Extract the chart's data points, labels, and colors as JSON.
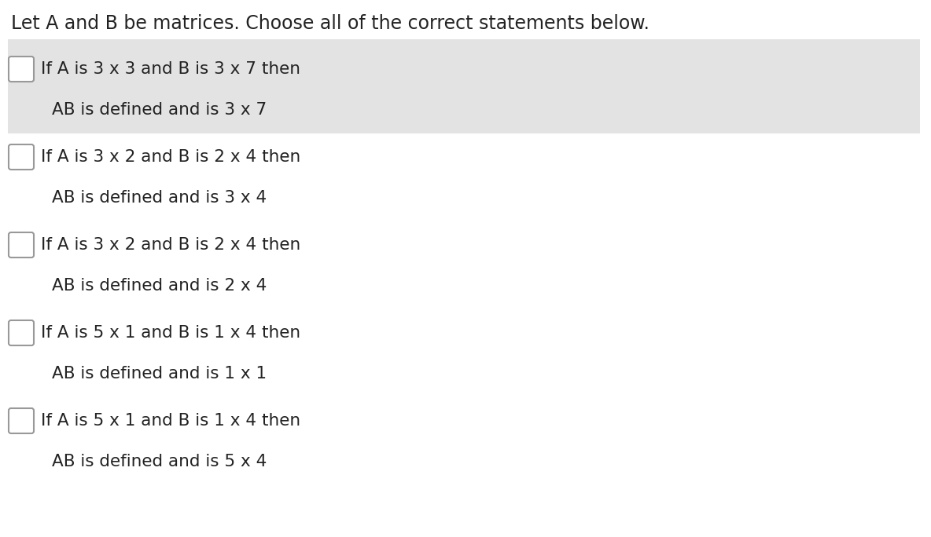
{
  "title": "Let A and B be matrices. Choose all of the correct statements below.",
  "title_fontsize": 17,
  "title_color": "#222222",
  "background_color": "#ffffff",
  "items": [
    {
      "condition": "If A is 3 x 3 and B is 3 x 7 then",
      "result": "AB is defined and is 3 x 7",
      "highlighted": true
    },
    {
      "condition": "If A is 3 x 2 and B is 2 x 4 then",
      "result": "AB is defined and is 3 x 4",
      "highlighted": false
    },
    {
      "condition": "If A is 3 x 2 and B is 2 x 4 then",
      "result": "AB is defined and is 2 x 4",
      "highlighted": false
    },
    {
      "condition": "If A is 5 x 1 and B is 1 x 4 then",
      "result": "AB is defined and is 1 x 1",
      "highlighted": false
    },
    {
      "condition": "If A is 5 x 1 and B is 1 x 4 then",
      "result": "AB is defined and is 5 x 4",
      "highlighted": false
    }
  ],
  "highlight_color": "#e3e3e3",
  "checkbox_color": "#ffffff",
  "checkbox_edge_color": "#999999",
  "text_color": "#222222",
  "condition_fontsize": 15.5,
  "result_fontsize": 15.5
}
